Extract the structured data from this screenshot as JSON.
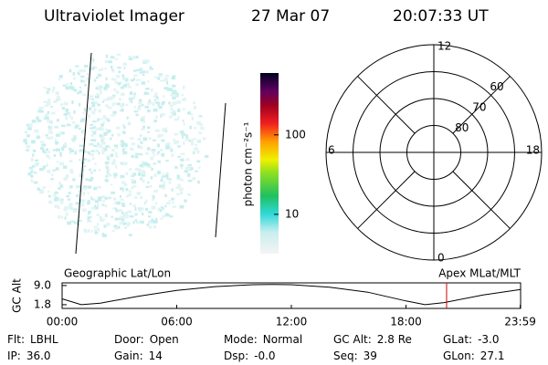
{
  "header": {
    "instrument": "Ultraviolet Imager",
    "date": "27 Mar 07",
    "time": "20:07:33 UT"
  },
  "colorbar": {
    "label": "photon cm⁻²s⁻¹",
    "log": true,
    "lim": [
      3.2,
      600
    ],
    "ticks": [
      10,
      100
    ]
  },
  "polar": {
    "rlim": [
      90,
      50
    ],
    "circles": [
      80,
      70,
      60
    ],
    "mlt_labels": [
      12,
      18,
      6,
      0
    ]
  },
  "altitude": {
    "y_label": "GC Alt",
    "left_label": "Geographic Lat/Lon",
    "right_label": "Apex MLat/MLT",
    "xlim": [
      0,
      24
    ],
    "ylim": [
      0.4,
      10
    ],
    "xticks": [
      {
        "value": 0,
        "label": "00:00"
      },
      {
        "value": 6,
        "label": "06:00"
      },
      {
        "value": 12,
        "label": "12:00"
      },
      {
        "value": 18,
        "label": "18:00"
      },
      {
        "value": 23.98,
        "label": "23:59"
      }
    ],
    "yticks": [
      1.8,
      {
        "value": 9,
        "label": "9.0"
      }
    ],
    "x": [
      0,
      1,
      2,
      4,
      6,
      8,
      10,
      11,
      12,
      14,
      16,
      18,
      19,
      20,
      22,
      24
    ],
    "values": [
      4.0,
      1.8,
      2.4,
      5.0,
      7.2,
      8.6,
      9.3,
      9.4,
      9.3,
      8.4,
      6.5,
      3.2,
      1.8,
      2.6,
      5.4,
      7.5
    ],
    "current_time": 20.126,
    "current_color": "#d00000"
  },
  "footer": [
    [
      {
        "label": "Flt:",
        "value": "LBHL"
      },
      {
        "label": "Door:",
        "value": "Open"
      },
      {
        "label": "Mode:",
        "value": "Normal"
      },
      {
        "label": "GC Alt:",
        "value": "2.8 Re"
      },
      {
        "label": "GLat:",
        "value": "-3.0"
      }
    ],
    [
      {
        "label": "IP:",
        "value": "36.0"
      },
      {
        "label": "Gain:",
        "value": "14"
      },
      {
        "label": "Dsp:",
        "value": "-0.0"
      },
      {
        "label": "Seq:",
        "value": "39"
      },
      {
        "label": "GLon:",
        "value": "27.1"
      }
    ]
  ]
}
